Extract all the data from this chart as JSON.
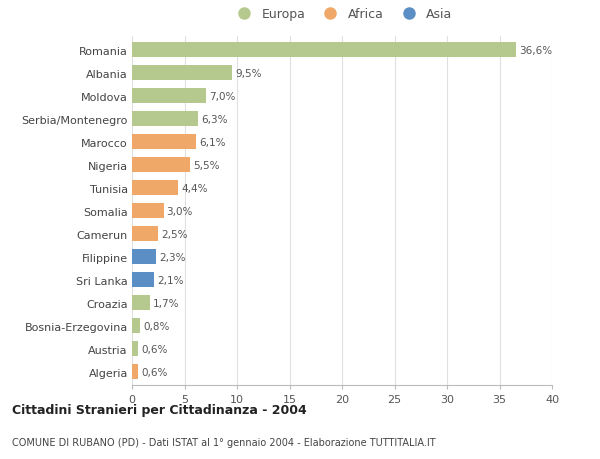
{
  "categories": [
    "Algeria",
    "Austria",
    "Bosnia-Erzegovina",
    "Croazia",
    "Sri Lanka",
    "Filippine",
    "Camerun",
    "Somalia",
    "Tunisia",
    "Nigeria",
    "Marocco",
    "Serbia/Montenegro",
    "Moldova",
    "Albania",
    "Romania"
  ],
  "values": [
    0.6,
    0.6,
    0.8,
    1.7,
    2.1,
    2.3,
    2.5,
    3.0,
    4.4,
    5.5,
    6.1,
    6.3,
    7.0,
    9.5,
    36.6
  ],
  "labels": [
    "0,6%",
    "0,6%",
    "0,8%",
    "1,7%",
    "2,1%",
    "2,3%",
    "2,5%",
    "3,0%",
    "4,4%",
    "5,5%",
    "6,1%",
    "6,3%",
    "7,0%",
    "9,5%",
    "36,6%"
  ],
  "continents": [
    "Africa",
    "Europa",
    "Europa",
    "Europa",
    "Asia",
    "Asia",
    "Africa",
    "Africa",
    "Africa",
    "Africa",
    "Africa",
    "Europa",
    "Europa",
    "Europa",
    "Europa"
  ],
  "bar_colors": [
    "#f0a868",
    "#b5c98e",
    "#b5c98e",
    "#b5c98e",
    "#5b8ec4",
    "#5b8ec4",
    "#f0a868",
    "#f0a868",
    "#f0a868",
    "#f0a868",
    "#f0a868",
    "#b5c98e",
    "#b5c98e",
    "#b5c98e",
    "#b5c98e"
  ],
  "title": "Cittadini Stranieri per Cittadinanza - 2004",
  "subtitle": "COMUNE DI RUBANO (PD) - Dati ISTAT al 1° gennaio 2004 - Elaborazione TUTTITALIA.IT",
  "xlim": [
    0,
    40
  ],
  "xticks": [
    0,
    5,
    10,
    15,
    20,
    25,
    30,
    35,
    40
  ],
  "legend_labels": [
    "Europa",
    "Africa",
    "Asia"
  ],
  "legend_colors": [
    "#b5c98e",
    "#f0a868",
    "#5b8ec4"
  ],
  "background_color": "#ffffff",
  "grid_color": "#e0e0e0"
}
